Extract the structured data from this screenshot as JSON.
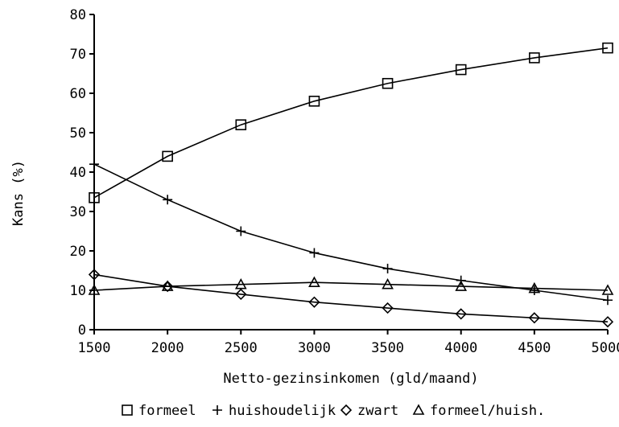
{
  "chart_data": {
    "type": "line",
    "title": "",
    "xlabel": "Netto-gezinsinkomen (gld/maand)",
    "ylabel": "Kans (%)",
    "xlim": [
      1500,
      5000
    ],
    "ylim": [
      0,
      80
    ],
    "x_ticks": [
      1500,
      2000,
      2500,
      3000,
      3500,
      4000,
      4500,
      5000
    ],
    "y_ticks": [
      0,
      10,
      20,
      30,
      40,
      50,
      60,
      70,
      80
    ],
    "grid": false,
    "legend_position": "bottom",
    "x": [
      1500,
      2000,
      2500,
      3000,
      3500,
      4000,
      4500,
      5000
    ],
    "series": [
      {
        "name": "formeel",
        "marker": "square",
        "values": [
          33.5,
          44,
          52,
          58,
          62.5,
          66,
          69,
          71.5
        ]
      },
      {
        "name": "huishoudelijk",
        "marker": "plus",
        "values": [
          42,
          33,
          25,
          19.5,
          15.5,
          12.5,
          10,
          7.5
        ]
      },
      {
        "name": "zwart",
        "marker": "diamond",
        "values": [
          14,
          11,
          9,
          7,
          5.5,
          4,
          3,
          2
        ]
      },
      {
        "name": "formeel/huish.",
        "marker": "triangle",
        "values": [
          10,
          11,
          11.5,
          12,
          11.5,
          11,
          10.5,
          10
        ]
      }
    ]
  }
}
